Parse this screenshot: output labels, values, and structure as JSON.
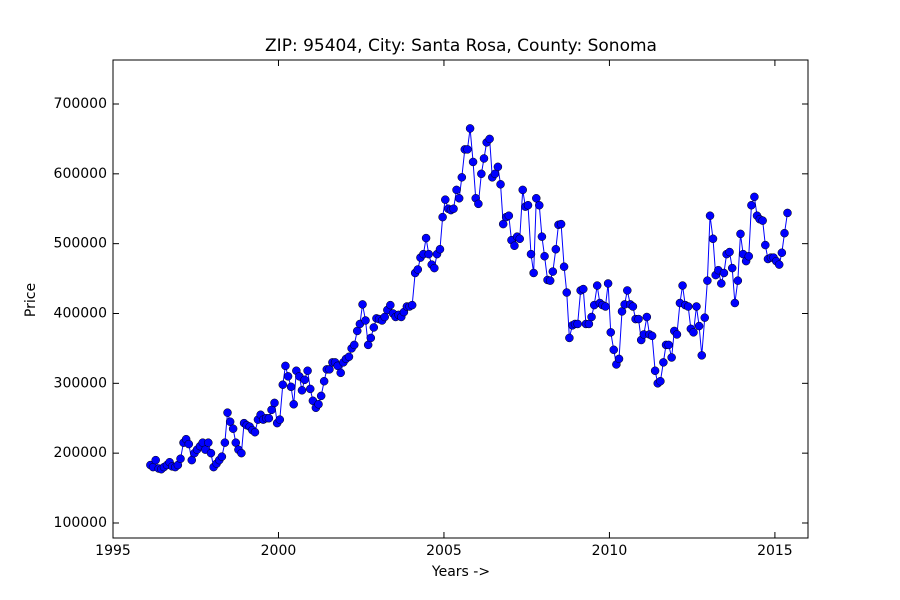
{
  "chart_data": {
    "type": "line",
    "title": "ZIP: 95404, City: Santa Rosa, County: Sonoma",
    "xlabel": "Years ->",
    "ylabel": "Price",
    "color": "#0000ff",
    "marker": "circle",
    "xlim": [
      1995,
      2016
    ],
    "xticks": [
      1995,
      2000,
      2005,
      2010,
      2015
    ],
    "ylim": [
      78500,
      763000
    ],
    "yticks": [
      100000,
      200000,
      300000,
      400000,
      500000,
      600000,
      700000
    ],
    "x": [
      1996.13,
      1996.21,
      1996.29,
      1996.38,
      1996.46,
      1996.54,
      1996.63,
      1996.71,
      1996.79,
      1996.88,
      1996.96,
      1997.04,
      1997.13,
      1997.21,
      1997.29,
      1997.38,
      1997.46,
      1997.54,
      1997.63,
      1997.71,
      1997.79,
      1997.88,
      1997.96,
      1998.04,
      1998.13,
      1998.21,
      1998.29,
      1998.38,
      1998.46,
      1998.54,
      1998.63,
      1998.71,
      1998.79,
      1998.88,
      1998.96,
      1999.04,
      1999.13,
      1999.21,
      1999.29,
      1999.38,
      1999.46,
      1999.54,
      1999.63,
      1999.71,
      1999.79,
      1999.88,
      1999.96,
      2000.04,
      2000.13,
      2000.21,
      2000.29,
      2000.38,
      2000.46,
      2000.54,
      2000.63,
      2000.71,
      2000.79,
      2000.88,
      2000.96,
      2001.04,
      2001.13,
      2001.21,
      2001.29,
      2001.38,
      2001.46,
      2001.54,
      2001.63,
      2001.71,
      2001.79,
      2001.88,
      2001.96,
      2002.04,
      2002.13,
      2002.21,
      2002.29,
      2002.38,
      2002.46,
      2002.54,
      2002.63,
      2002.71,
      2002.79,
      2002.88,
      2002.96,
      2003.04,
      2003.13,
      2003.21,
      2003.29,
      2003.38,
      2003.46,
      2003.54,
      2003.63,
      2003.71,
      2003.79,
      2003.88,
      2003.96,
      2004.04,
      2004.13,
      2004.21,
      2004.29,
      2004.38,
      2004.46,
      2004.54,
      2004.63,
      2004.71,
      2004.79,
      2004.88,
      2004.96,
      2005.04,
      2005.13,
      2005.21,
      2005.29,
      2005.38,
      2005.46,
      2005.54,
      2005.63,
      2005.71,
      2005.79,
      2005.88,
      2005.96,
      2006.04,
      2006.13,
      2006.21,
      2006.29,
      2006.38,
      2006.46,
      2006.54,
      2006.63,
      2006.71,
      2006.79,
      2006.88,
      2006.96,
      2007.04,
      2007.13,
      2007.21,
      2007.29,
      2007.38,
      2007.46,
      2007.54,
      2007.63,
      2007.71,
      2007.79,
      2007.88,
      2007.96,
      2008.04,
      2008.13,
      2008.21,
      2008.29,
      2008.38,
      2008.46,
      2008.54,
      2008.63,
      2008.71,
      2008.79,
      2008.88,
      2008.96,
      2009.04,
      2009.13,
      2009.21,
      2009.29,
      2009.38,
      2009.46,
      2009.54,
      2009.63,
      2009.71,
      2009.79,
      2009.88,
      2009.96,
      2010.04,
      2010.13,
      2010.21,
      2010.29,
      2010.38,
      2010.46,
      2010.54,
      2010.63,
      2010.71,
      2010.79,
      2010.88,
      2010.96,
      2011.04,
      2011.13,
      2011.21,
      2011.29,
      2011.38,
      2011.46,
      2011.54,
      2011.63,
      2011.71,
      2011.79,
      2011.88,
      2011.96,
      2012.04,
      2012.13,
      2012.21,
      2012.29,
      2012.38,
      2012.46,
      2012.54,
      2012.63,
      2012.71,
      2012.79,
      2012.88,
      2012.96,
      2013.04,
      2013.13,
      2013.21,
      2013.29,
      2013.38,
      2013.46,
      2013.54,
      2013.63,
      2013.71,
      2013.79,
      2013.88,
      2013.96,
      2014.04,
      2014.13,
      2014.21,
      2014.29,
      2014.38,
      2014.46,
      2014.54,
      2014.63,
      2014.71,
      2014.79,
      2014.88,
      2014.96,
      2015.04,
      2015.13,
      2015.21,
      2015.29,
      2015.38
    ],
    "values": [
      183000,
      180000,
      190000,
      178000,
      177000,
      180000,
      183000,
      187000,
      181000,
      180000,
      183000,
      192000,
      215000,
      220000,
      213000,
      190000,
      200000,
      205000,
      210000,
      215000,
      205000,
      215000,
      200000,
      180000,
      185000,
      190000,
      195000,
      215000,
      258000,
      245000,
      235000,
      215000,
      205000,
      200000,
      243000,
      240000,
      238000,
      233000,
      230000,
      248000,
      255000,
      248000,
      250000,
      250000,
      262000,
      272000,
      243000,
      248000,
      298000,
      325000,
      310000,
      295000,
      270000,
      318000,
      310000,
      290000,
      305000,
      318000,
      292000,
      275000,
      265000,
      270000,
      282000,
      303000,
      320000,
      320000,
      330000,
      330000,
      325000,
      315000,
      330000,
      335000,
      338000,
      350000,
      355000,
      375000,
      385000,
      413000,
      390000,
      355000,
      365000,
      380000,
      393000,
      392000,
      390000,
      395000,
      405000,
      412000,
      400000,
      395000,
      398000,
      395000,
      402000,
      410000,
      410000,
      412000,
      458000,
      463000,
      480000,
      485000,
      508000,
      485000,
      470000,
      465000,
      485000,
      492000,
      538000,
      563000,
      550000,
      548000,
      550000,
      577000,
      565000,
      595000,
      635000,
      635000,
      665000,
      617000,
      565000,
      557000,
      600000,
      622000,
      645000,
      650000,
      595000,
      600000,
      610000,
      585000,
      528000,
      538000,
      540000,
      505000,
      497000,
      510000,
      507000,
      577000,
      553000,
      555000,
      485000,
      458000,
      565000,
      555000,
      510000,
      482000,
      448000,
      447000,
      460000,
      492000,
      527000,
      528000,
      467000,
      430000,
      365000,
      383000,
      385000,
      385000,
      433000,
      435000,
      385000,
      385000,
      395000,
      412000,
      440000,
      415000,
      412000,
      410000,
      443000,
      373000,
      348000,
      327000,
      335000,
      403000,
      413000,
      433000,
      413000,
      410000,
      392000,
      392000,
      362000,
      370000,
      395000,
      370000,
      368000,
      318000,
      300000,
      303000,
      330000,
      355000,
      355000,
      337000,
      375000,
      370000,
      415000,
      440000,
      412000,
      410000,
      378000,
      373000,
      410000,
      382000,
      340000,
      394000,
      447000,
      540000,
      507000,
      455000,
      462000,
      443000,
      458000,
      485000,
      488000,
      465000,
      415000,
      447000,
      514000,
      485000,
      475000,
      482000,
      555000,
      567000,
      540000,
      535000,
      533000,
      498000,
      478000,
      480000,
      480000,
      475000,
      470000,
      487000,
      515000,
      544000
    ]
  }
}
